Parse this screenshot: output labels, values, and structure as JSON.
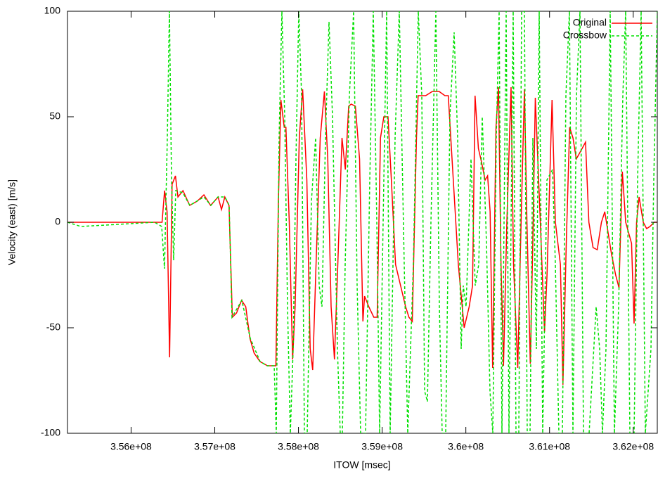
{
  "chart_data": {
    "type": "line",
    "xlabel": "ITOW [msec]",
    "ylabel": "Velocity (east) [m/s]",
    "xlim": [
      355240000,
      362287600
    ],
    "ylim": [
      -100,
      100
    ],
    "xticks": [
      {
        "value": 356000000,
        "label": "3.56e+08"
      },
      {
        "value": 357000000,
        "label": "3.57e+08"
      },
      {
        "value": 358000000,
        "label": "3.58e+08"
      },
      {
        "value": 359000000,
        "label": "3.59e+08"
      },
      {
        "value": 360000000,
        "label": "3.6e+08"
      },
      {
        "value": 361000000,
        "label": "3.61e+08"
      },
      {
        "value": 362000000,
        "label": "3.62e+08"
      }
    ],
    "yticks": [
      -100,
      -50,
      0,
      50,
      100
    ],
    "grid": false,
    "legend": "top-right",
    "series": [
      {
        "name": "Original",
        "color": "#ff0000",
        "dash": "none",
        "x": [
          355240000,
          356280000,
          356370000,
          356400000,
          356430000,
          356460000,
          356490000,
          356530000,
          356560000,
          356620000,
          356700000,
          356790000,
          356870000,
          356950000,
          357040000,
          357080000,
          357120000,
          357170000,
          357210000,
          357260000,
          357320000,
          357370000,
          357420000,
          357470000,
          357540000,
          357630000,
          357730000,
          357760000,
          357790000,
          357830000,
          357850000,
          357890000,
          357930000,
          357960000,
          358010000,
          358050000,
          358100000,
          358140000,
          358170000,
          358210000,
          358260000,
          358310000,
          358350000,
          358390000,
          358430000,
          358470000,
          358520000,
          358560000,
          358600000,
          358630000,
          358680000,
          358730000,
          358770000,
          358790000,
          358840000,
          358900000,
          358940000,
          358980000,
          359020000,
          359070000,
          359110000,
          359160000,
          359220000,
          359280000,
          359320000,
          359360000,
          359410000,
          359430000,
          359520000,
          359600000,
          359680000,
          359750000,
          359790000,
          359850000,
          359910000,
          359980000,
          360040000,
          360080000,
          360110000,
          360150000,
          360190000,
          360230000,
          360260000,
          360290000,
          360320000,
          360360000,
          360390000,
          360420000,
          360450000,
          360490000,
          360540000,
          360570000,
          360620000,
          360660000,
          360700000,
          360730000,
          360770000,
          360800000,
          360830000,
          360890000,
          360940000,
          360970000,
          361030000,
          361070000,
          361130000,
          361160000,
          361200000,
          361240000,
          361280000,
          361320000,
          361390000,
          361430000,
          361470000,
          361520000,
          361570000,
          361620000,
          361660000,
          361700000,
          361740000,
          361790000,
          361830000,
          361870000,
          361910000,
          361980000,
          362010000,
          362040000,
          362070000,
          362120000,
          362160000,
          362200000,
          362250000,
          362290000
        ],
        "values": [
          0,
          0,
          0,
          15,
          5,
          -64,
          18,
          22,
          12,
          15,
          8,
          10,
          13,
          8,
          12,
          6,
          12,
          8,
          -45,
          -43,
          -37,
          -40,
          -55,
          -62,
          -66,
          -68,
          -68,
          10,
          58,
          45,
          45,
          0,
          -65,
          -40,
          40,
          63,
          20,
          -60,
          -70,
          -20,
          40,
          62,
          30,
          -40,
          -65,
          -20,
          40,
          25,
          55,
          56,
          55,
          30,
          -47,
          -35,
          -40,
          -45,
          -45,
          40,
          50,
          50,
          20,
          -20,
          -30,
          -40,
          -45,
          -47,
          40,
          60,
          60,
          62,
          62,
          60,
          60,
          20,
          -20,
          -50,
          -40,
          -30,
          60,
          35,
          28,
          20,
          22,
          5,
          -69,
          45,
          64,
          -20,
          -68,
          0,
          64,
          -20,
          -69,
          0,
          63,
          0,
          -67,
          -10,
          59,
          0,
          -52,
          -25,
          58,
          0,
          -20,
          -77,
          -10,
          45,
          40,
          30,
          35,
          38,
          0,
          -12,
          -13,
          0,
          5,
          -5,
          -15,
          -25,
          -31,
          24,
          0,
          -10,
          -48,
          0,
          12,
          0,
          -3,
          -2,
          0,
          0
        ]
      },
      {
        "name": "Crossbow",
        "color": "#00e000",
        "dash": "4,3",
        "x": [
          355240000,
          355399600,
          356281600,
          356365600,
          356399200,
          356432800,
          356458000,
          356483200,
          356508400,
          356533600,
          356617600,
          356701600,
          356785600,
          356869600,
          356953600,
          357037600,
          357121600,
          357172000,
          357205600,
          357323200,
          357424000,
          357541600,
          357625600,
          357709600,
          357734800,
          357768400,
          357802000,
          357835600,
          357869200,
          357902800,
          357936400,
          357970000,
          358003600,
          358037200,
          358070800,
          358104400,
          358154800,
          358205200,
          358247200,
          358280800,
          358322800,
          358364800,
          358406800,
          358465600,
          358499200,
          358524400,
          358558000,
          358608400,
          358658800,
          358700800,
          358742800,
          358801600,
          358852000,
          358894000,
          358936000,
          358969600,
          359011600,
          359053600,
          359095600,
          359154400,
          359204800,
          359263600,
          359305600,
          359372800,
          359431600,
          359473600,
          359507200,
          359540800,
          359582800,
          359641600,
          359683600,
          359717200,
          359759200,
          359809600,
          359860000,
          359902000,
          359944000,
          359969200,
          360002800,
          360061600,
          360112000,
          360154000,
          360196000,
          360246400,
          360288400,
          360322000,
          360364000,
          360397600,
          360431200,
          360481600,
          360515200,
          360565600,
          360599200,
          360632800,
          360666400,
          360700000,
          360733600,
          360767200,
          360800800,
          360842800,
          360876400,
          360918400,
          360968800,
          361036000,
          361069600,
          361111600,
          361153600,
          361195600,
          361237600,
          361279600,
          361321600,
          361363600,
          361405600,
          361472800,
          361514800,
          361556800,
          361598800,
          361632400,
          361674400,
          361724800,
          361775200,
          361825600,
          361876000,
          361909600,
          361960000,
          362010400,
          362052400,
          362094400,
          362144800,
          362212000,
          362245600,
          362287600
        ],
        "values": [
          0,
          -2,
          0,
          -2,
          -22,
          40,
          100,
          20,
          -18,
          15,
          14,
          8,
          10,
          12,
          8,
          12,
          12,
          8,
          -45,
          -37,
          -55,
          -66,
          -68,
          -68,
          -100,
          40,
          100,
          50,
          -40,
          -100,
          -60,
          30,
          100,
          60,
          -100,
          -100,
          10,
          40,
          -30,
          -40,
          40,
          95,
          50,
          -60,
          -100,
          -100,
          -20,
          60,
          100,
          -30,
          -100,
          -100,
          20,
          100,
          0,
          -100,
          0,
          100,
          -100,
          40,
          100,
          -20,
          -100,
          -20,
          100,
          60,
          -80,
          -85,
          0,
          100,
          -40,
          -100,
          -100,
          50,
          90,
          40,
          -60,
          -30,
          -40,
          30,
          -30,
          -20,
          50,
          -10,
          -80,
          -100,
          40,
          100,
          -100,
          100,
          -100,
          100,
          -100,
          -100,
          100,
          100,
          -100,
          -100,
          40,
          -60,
          100,
          -100,
          20,
          25,
          -20,
          -100,
          -100,
          60,
          100,
          -100,
          60,
          100,
          -100,
          -100,
          -70,
          -40,
          -60,
          -100,
          -60,
          100,
          -100,
          -40,
          60,
          100,
          -100,
          -100,
          20,
          100,
          -100,
          -60,
          20,
          100
        ]
      }
    ]
  }
}
